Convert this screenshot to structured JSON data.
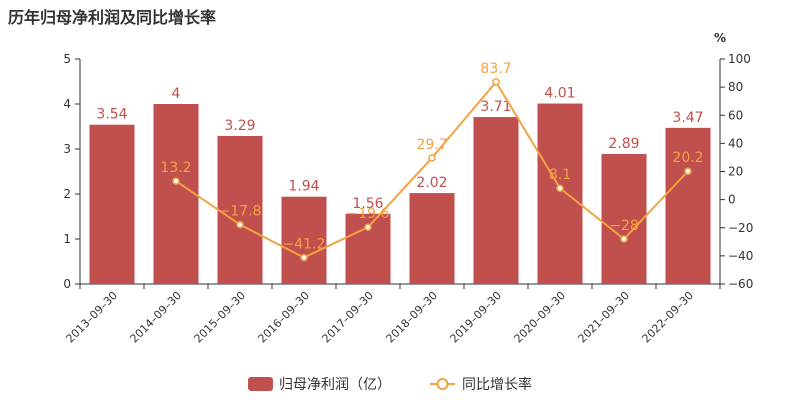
{
  "title": "历年归母净利润及同比增长率",
  "chart_data": {
    "type": "bar",
    "title": "历年归母净利润及同比增长率",
    "categories": [
      "2013-09-30",
      "2014-09-30",
      "2015-09-30",
      "2016-09-30",
      "2017-09-30",
      "2018-09-30",
      "2019-09-30",
      "2020-09-30",
      "2021-09-30",
      "2022-09-30"
    ],
    "series": [
      {
        "name": "归母净利润（亿）",
        "type": "bar",
        "axis": "left",
        "color": "#c0504d",
        "values": [
          3.54,
          4,
          3.29,
          1.94,
          1.56,
          2.02,
          3.71,
          4.01,
          2.89,
          3.47
        ],
        "labels": [
          "3.54",
          "4",
          "3.29",
          "1.94",
          "1.56",
          "2.02",
          "3.71",
          "4.01",
          "2.89",
          "3.47"
        ]
      },
      {
        "name": "同比增长率",
        "type": "line",
        "axis": "right",
        "color": "#f4a142",
        "values": [
          null,
          13.2,
          -17.8,
          -41.2,
          -19.6,
          29.7,
          83.7,
          8.1,
          -28,
          20.2
        ],
        "labels": [
          "",
          "13.2",
          "-17.8",
          "-41.2",
          "-19.6",
          "29.7",
          "83.7",
          "8.1",
          "-28",
          "20.2"
        ]
      }
    ],
    "y_left": {
      "min": 0,
      "max": 5,
      "ticks": [
        "0",
        "1",
        "2",
        "3",
        "4",
        "5"
      ]
    },
    "y_right": {
      "min": -60,
      "max": 100,
      "unit": "%",
      "ticks": [
        "-60",
        "-40",
        "-20",
        "0",
        "20",
        "40",
        "60",
        "80",
        "100"
      ]
    },
    "legend": {
      "position": "bottom",
      "items": [
        "归母净利润（亿）",
        "同比增长率"
      ]
    },
    "grid": false
  }
}
